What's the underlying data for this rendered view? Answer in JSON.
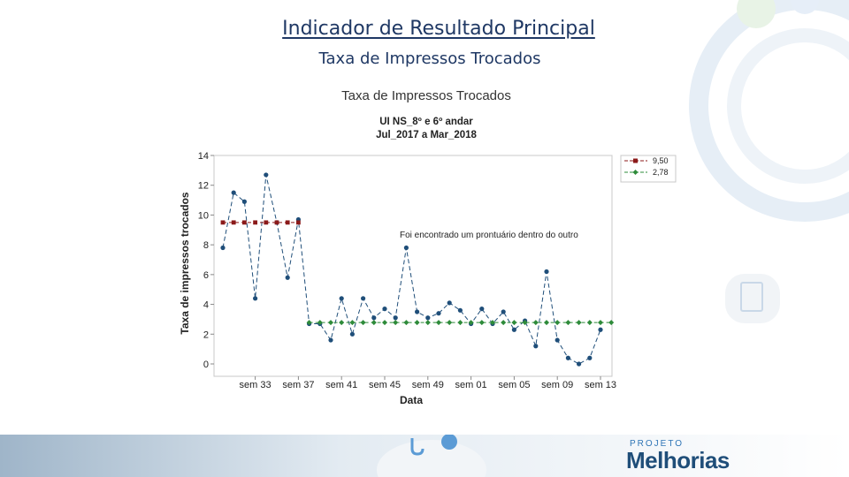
{
  "slide": {
    "title": "Indicador de Resultado Principal",
    "subtitle": "Taxa de Impressos Trocados"
  },
  "logo": {
    "small": "PROJETO",
    "big": "Melhorias"
  },
  "chart_data": {
    "type": "line",
    "title": "Taxa de Impressos Trocados",
    "subtitle_lines": [
      "UI NS_8º e 6º andar",
      "Jul_2017 a  Mar_2018"
    ],
    "xlabel": "Data",
    "ylabel": "Taxa de impressos trocados",
    "ylim": [
      0,
      14
    ],
    "yticks": [
      0,
      2,
      4,
      6,
      8,
      10,
      12,
      14
    ],
    "xtick_labels": [
      "sem 33",
      "sem 37",
      "sem 41",
      "sem 45",
      "sem 49",
      "sem 01",
      "sem 05",
      "sem 09",
      "sem 13"
    ],
    "xtick_index": [
      3,
      7,
      11,
      15,
      19,
      23,
      27,
      31,
      35
    ],
    "x_count": 37,
    "series": [
      {
        "name": "",
        "color": "#1f4e79",
        "style": "dashed-dots",
        "values": [
          7.8,
          11.5,
          10.9,
          4.4,
          12.7,
          9.5,
          5.8,
          9.7,
          2.7,
          2.7,
          1.6,
          4.4,
          2.0,
          4.4,
          3.1,
          3.7,
          3.1,
          7.8,
          3.5,
          3.1,
          3.4,
          4.1,
          3.6,
          2.7,
          3.7,
          2.7,
          3.5,
          2.3,
          2.9,
          1.2,
          6.2,
          1.6,
          0.4,
          0.0,
          0.4,
          2.3
        ]
      },
      {
        "name": "9,50",
        "color": "#8b1a1a",
        "style": "dashed-squares",
        "x_range": [
          0,
          7
        ],
        "level": 9.5
      },
      {
        "name": "2,78",
        "color": "#2e8b3a",
        "style": "dashed-diamonds",
        "x_range": [
          8,
          36
        ],
        "level": 2.78
      }
    ],
    "annotation": "Foi encontrado um prontuário dentro do outro",
    "legend_position": "top-right"
  }
}
